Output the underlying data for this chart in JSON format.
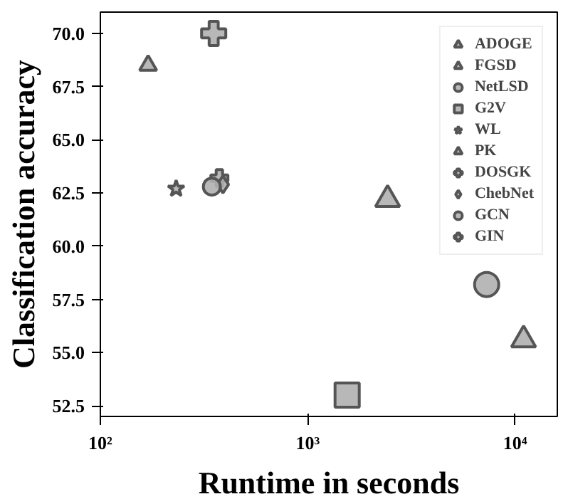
{
  "chart_data": {
    "type": "scatter",
    "xlabel": "Runtime in seconds",
    "ylabel": "Classification accuracy",
    "log": "x",
    "xlim": [
      100,
      16000
    ],
    "xticks": [
      {
        "value": 100,
        "label": "10²"
      },
      {
        "value": 1000,
        "label": "10³"
      },
      {
        "value": 10000,
        "label": "10⁴"
      }
    ],
    "ylim": [
      52,
      71
    ],
    "yticks": [
      52.5,
      {
        "value": 55,
        "label": "55.0"
      },
      57.5,
      {
        "value": 60,
        "label": "60.0"
      },
      62.5,
      {
        "value": 65,
        "label": "65.0"
      },
      67.5,
      {
        "value": 70,
        "label": "70.0"
      }
    ],
    "grid": false,
    "legend": "top right",
    "series": [
      {
        "name": "ADOGE",
        "color": "#b0b0b0",
        "marker": "triangle",
        "x": [
          170
        ],
        "values": [
          68.5
        ]
      },
      {
        "name": "FGSD",
        "color": "#b0b0b0",
        "marker": "triangle",
        "x": [
          11000
        ],
        "values": [
          55.6
        ]
      },
      {
        "name": "NetLSD",
        "color": "#b0b0b0",
        "marker": "circle",
        "x": [
          7300
        ],
        "values": [
          58.2
        ]
      },
      {
        "name": "G2V",
        "color": "#b0b0b0",
        "marker": "square",
        "x": [
          1550
        ],
        "values": [
          53.0
        ]
      },
      {
        "name": "WL",
        "color": "#b0b0b0",
        "marker": "star",
        "x": [
          232
        ],
        "values": [
          62.7
        ]
      },
      {
        "name": "PK",
        "color": "#b0b0b0",
        "marker": "triangle",
        "x": [
          2430
        ],
        "values": [
          62.2
        ]
      },
      {
        "name": "DOSGK",
        "color": "#b0b0b0",
        "marker": "cross",
        "x": [
          375
        ],
        "values": [
          63.2
        ]
      },
      {
        "name": "ChebNet",
        "color": "#b0b0b0",
        "marker": "diamond",
        "x": [
          390
        ],
        "values": [
          62.9
        ]
      },
      {
        "name": "GCN",
        "color": "#b0b0b0",
        "marker": "circle",
        "x": [
          345
        ],
        "values": [
          62.8
        ]
      },
      {
        "name": "GIN",
        "color": "#b0b0b0",
        "marker": "cross",
        "x": [
          352
        ],
        "values": [
          70.0
        ]
      }
    ]
  }
}
